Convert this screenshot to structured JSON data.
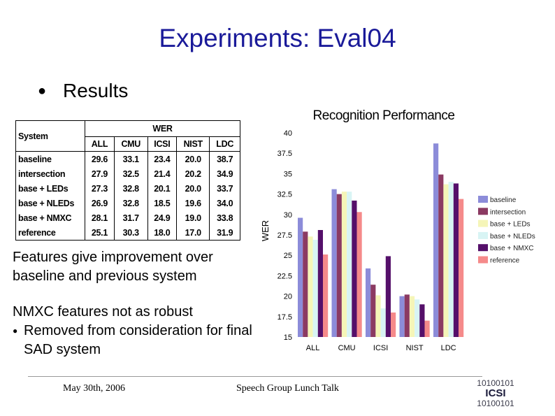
{
  "slide": {
    "title": "Experiments: Eval04",
    "bullet": "Results",
    "note1": "Features give improvement over baseline and previous system",
    "note2_line1": "NMXC features not as robust",
    "note2_line2": "Removed from consideration for final SAD system",
    "footer_date": "May 30th, 2006",
    "footer_talk": "Speech Group Lunch Talk",
    "logo_lines": [
      "10100101",
      "ICSI",
      "10100101"
    ]
  },
  "table": {
    "system_header": "System",
    "wer_header": "WER",
    "columns": [
      "ALL",
      "CMU",
      "ICSI",
      "NIST",
      "LDC"
    ],
    "rows": [
      {
        "system": "baseline",
        "values": [
          "29.6",
          "33.1",
          "23.4",
          "20.0",
          "38.7"
        ]
      },
      {
        "system": "intersection",
        "values": [
          "27.9",
          "32.5",
          "21.4",
          "20.2",
          "34.9"
        ]
      },
      {
        "system": "base + LEDs",
        "values": [
          "27.3",
          "32.8",
          "20.1",
          "20.0",
          "33.7"
        ]
      },
      {
        "system": "base + NLEDs",
        "values": [
          "26.9",
          "32.8",
          "18.5",
          "19.6",
          "34.0"
        ]
      },
      {
        "system": "base + NMXC",
        "values": [
          "28.1",
          "31.7",
          "24.9",
          "19.0",
          "33.8"
        ]
      },
      {
        "system": "reference",
        "values": [
          "25.1",
          "30.3",
          "18.0",
          "17.0",
          "31.9"
        ]
      }
    ]
  },
  "chart_data": {
    "type": "bar",
    "title": "Recognition Performance",
    "ylabel": "WER",
    "xlabel": "",
    "ylim": [
      15,
      40
    ],
    "yticks": [
      "40",
      "37.5",
      "35",
      "32.5",
      "30",
      "27.5",
      "25",
      "22.5",
      "20",
      "17.5",
      "15"
    ],
    "categories": [
      "ALL",
      "CMU",
      "ICSI",
      "NIST",
      "LDC"
    ],
    "series": [
      {
        "name": "baseline",
        "color": "#8c8cd9",
        "values": [
          29.6,
          33.1,
          23.4,
          20.0,
          38.7
        ]
      },
      {
        "name": "intersection",
        "color": "#8b3a62",
        "values": [
          27.9,
          32.5,
          21.4,
          20.2,
          34.9
        ]
      },
      {
        "name": "base + LEDs",
        "color": "#f5f5b8",
        "values": [
          27.3,
          32.8,
          20.1,
          20.0,
          33.7
        ]
      },
      {
        "name": "base + NLEDs",
        "color": "#d8f4f4",
        "values": [
          26.9,
          32.8,
          18.5,
          19.6,
          34.0
        ]
      },
      {
        "name": "base + NMXC",
        "color": "#55106a",
        "values": [
          28.1,
          31.7,
          24.9,
          19.0,
          33.8
        ]
      },
      {
        "name": "reference",
        "color": "#f58a8a",
        "values": [
          25.1,
          30.3,
          18.0,
          17.0,
          31.9
        ]
      }
    ],
    "legend_position": "right",
    "grid": false
  }
}
